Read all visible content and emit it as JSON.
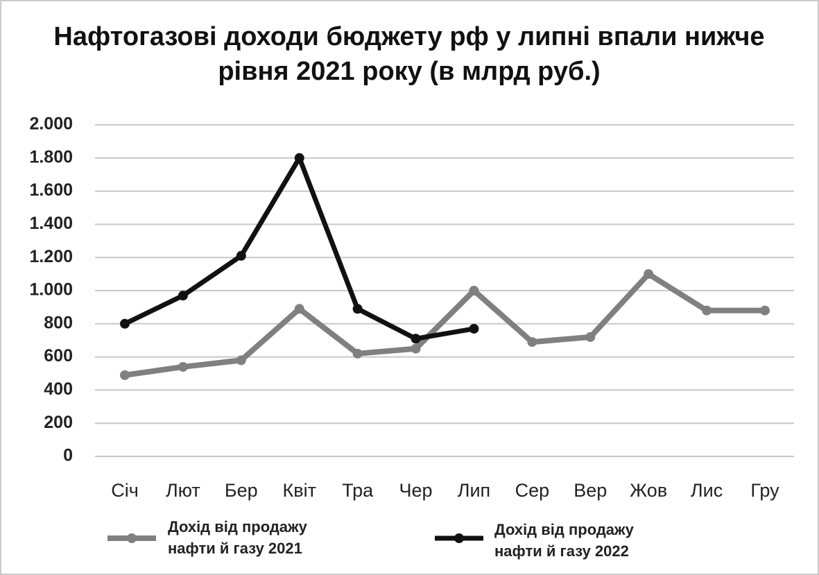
{
  "chart_data": {
    "type": "line",
    "title": "Нафтогазові доходи бюджету рф у липні впали нижче рівня 2021 року (в млрд руб.)",
    "categories": [
      "Січ",
      "Лют",
      "Бер",
      "Квіт",
      "Тра",
      "Чер",
      "Лип",
      "Сер",
      "Вер",
      "Жов",
      "Лис",
      "Гру"
    ],
    "series": [
      {
        "name": "Дохід від продажу нафти й газу 2021",
        "color": "#808080",
        "values": [
          490,
          540,
          580,
          890,
          620,
          650,
          1000,
          690,
          720,
          1100,
          880,
          880
        ]
      },
      {
        "name": "Дохід від продажу нафти й газу 2022",
        "color": "#111111",
        "values": [
          800,
          970,
          1210,
          1800,
          890,
          710,
          770,
          null,
          null,
          null,
          null,
          null
        ]
      }
    ],
    "ylim": [
      0,
      2000
    ],
    "yticks": [
      0,
      200,
      400,
      600,
      800,
      {
        "value": 1000,
        "label": "1.000"
      },
      {
        "value": 1200,
        "label": "1.200"
      },
      {
        "value": 1400,
        "label": "1.400"
      },
      {
        "value": 1600,
        "label": "1.600"
      },
      {
        "value": 1800,
        "label": "1.800"
      },
      {
        "value": 2000,
        "label": "2.000"
      }
    ],
    "grid": true
  }
}
